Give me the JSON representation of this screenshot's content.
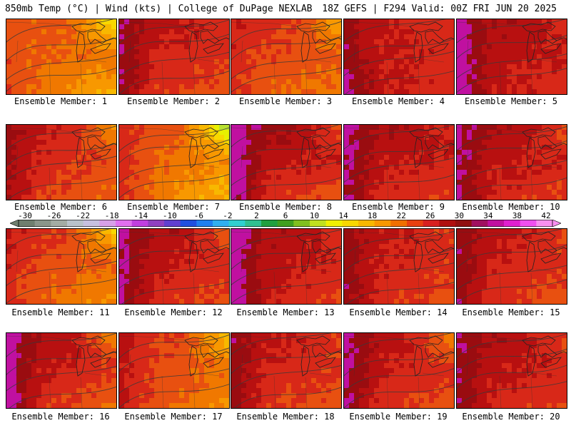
{
  "header": {
    "left": "850mb Temp (°C) | Wind (kts) | College of DuPage NEXLAB",
    "right": "18Z GEFS | F294 Valid: 00Z FRI JUN 20 2025"
  },
  "colorbar": {
    "tick_labels": [
      "-30",
      "-26",
      "-22",
      "-18",
      "-14",
      "-10",
      "-6",
      "-2",
      "2",
      "6",
      "10",
      "14",
      "18",
      "22",
      "26",
      "30",
      "34",
      "38",
      "42"
    ],
    "colors": [
      "#6f7f6f",
      "#8a968a",
      "#a3aca3",
      "#b9c2c9",
      "#c7c0e0",
      "#d7a0e8",
      "#e070f0",
      "#c040e0",
      "#9040c0",
      "#6040d0",
      "#2050e0",
      "#2080f0",
      "#30b0f0",
      "#30d0d0",
      "#30c090",
      "#20a040",
      "#40a020",
      "#80c020",
      "#c0e020",
      "#f0f000",
      "#f8d800",
      "#f8b800",
      "#f89800",
      "#f07000",
      "#e84010",
      "#d82020",
      "#b01010",
      "#901010",
      "#a01060",
      "#c010a0",
      "#e020d0",
      "#f050f0",
      "#f890f0"
    ]
  },
  "members": [
    {
      "label": "Ensemble Member: 1",
      "heat": [
        0.55,
        0.65,
        0.6,
        0.35
      ],
      "warm_west": 0.2,
      "cool_ne": 0.9
    },
    {
      "label": "Ensemble Member: 2",
      "heat": [
        0.8,
        0.75,
        0.7,
        0.6
      ],
      "warm_west": 0.9,
      "cool_ne": 0.1
    },
    {
      "label": "Ensemble Member: 3",
      "heat": [
        0.7,
        0.65,
        0.6,
        0.5
      ],
      "warm_west": 0.3,
      "cool_ne": 0.5
    },
    {
      "label": "Ensemble Member: 4",
      "heat": [
        0.8,
        0.7,
        0.8,
        0.7
      ],
      "warm_west": 0.6,
      "cool_ne": 0.0
    },
    {
      "label": "Ensemble Member: 5",
      "heat": [
        0.85,
        0.8,
        0.8,
        0.7
      ],
      "warm_west": 0.9,
      "cool_ne": 0.2
    },
    {
      "label": "Ensemble Member: 6",
      "heat": [
        0.8,
        0.7,
        0.7,
        0.55
      ],
      "warm_west": 0.6,
      "cool_ne": 0.5
    },
    {
      "label": "Ensemble Member: 7",
      "heat": [
        0.65,
        0.55,
        0.6,
        0.3
      ],
      "warm_west": 0.3,
      "cool_ne": 1.0
    },
    {
      "label": "Ensemble Member: 8",
      "heat": [
        0.9,
        0.85,
        0.75,
        0.6
      ],
      "warm_west": 1.0,
      "cool_ne": 0.4
    },
    {
      "label": "Ensemble Member: 9",
      "heat": [
        0.85,
        0.8,
        0.75,
        0.65
      ],
      "warm_west": 0.8,
      "cool_ne": 0.1
    },
    {
      "label": "Ensemble Member: 10",
      "heat": [
        0.85,
        0.8,
        0.75,
        0.65
      ],
      "warm_west": 0.8,
      "cool_ne": 0.3
    },
    {
      "label": "Ensemble Member: 11",
      "heat": [
        0.7,
        0.65,
        0.6,
        0.45
      ],
      "warm_west": 0.3,
      "cool_ne": 0.7
    },
    {
      "label": "Ensemble Member: 12",
      "heat": [
        0.85,
        0.8,
        0.75,
        0.6
      ],
      "warm_west": 0.8,
      "cool_ne": 0.4
    },
    {
      "label": "Ensemble Member: 13",
      "heat": [
        0.85,
        0.8,
        0.8,
        0.65
      ],
      "warm_west": 0.95,
      "cool_ne": 0.2
    },
    {
      "label": "Ensemble Member: 14",
      "heat": [
        0.8,
        0.75,
        0.75,
        0.6
      ],
      "warm_west": 0.6,
      "cool_ne": 0.2
    },
    {
      "label": "Ensemble Member: 15",
      "heat": [
        0.8,
        0.75,
        0.7,
        0.6
      ],
      "warm_west": 0.8,
      "cool_ne": 0.2
    },
    {
      "label": "Ensemble Member: 16",
      "heat": [
        0.85,
        0.8,
        0.75,
        0.55
      ],
      "warm_west": 1.0,
      "cool_ne": 0.6
    },
    {
      "label": "Ensemble Member: 17",
      "heat": [
        0.7,
        0.6,
        0.65,
        0.45
      ],
      "warm_west": 0.5,
      "cool_ne": 0.6
    },
    {
      "label": "Ensemble Member: 18",
      "heat": [
        0.8,
        0.75,
        0.7,
        0.6
      ],
      "warm_west": 0.7,
      "cool_ne": 0.2
    },
    {
      "label": "Ensemble Member: 19",
      "heat": [
        0.85,
        0.75,
        0.75,
        0.6
      ],
      "warm_west": 0.8,
      "cool_ne": 0.5
    },
    {
      "label": "Ensemble Member: 20",
      "heat": [
        0.85,
        0.8,
        0.75,
        0.65
      ],
      "warm_west": 0.7,
      "cool_ne": 0.3
    }
  ]
}
